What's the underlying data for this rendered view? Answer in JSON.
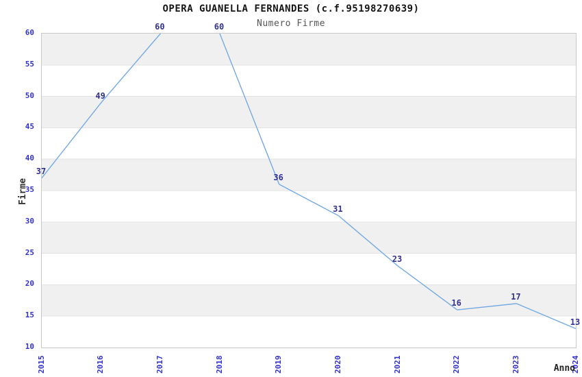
{
  "title": "OPERA GUANELLA FERNANDES (c.f.95198270639)",
  "subtitle": "Numero Firme",
  "chart_data": {
    "type": "line",
    "x": [
      "2015",
      "2016",
      "2017",
      "2018",
      "2019",
      "2020",
      "2021",
      "2022",
      "2023",
      "2024"
    ],
    "values": [
      37,
      49,
      60,
      60,
      36,
      31,
      23,
      16,
      17,
      13
    ],
    "title": "OPERA GUANELLA FERNANDES (c.f.95198270639)",
    "subtitle": "Numero Firme",
    "xlabel": "Anno",
    "ylabel": "Firme",
    "ylim": [
      10,
      60
    ],
    "ytick_step": 5,
    "yticks": [
      60,
      55,
      50,
      45,
      40,
      35,
      30,
      25,
      20,
      15,
      10
    ],
    "legend": "none",
    "grid": "horizontal-alternating-bands",
    "data_labels_visible": true,
    "colors": {
      "line": "#74aae4",
      "band": "#f0f0f0",
      "gridline": "#e3e3e3",
      "plot_border": "#c9c9c9",
      "tick_labels": "#3232cd",
      "data_labels": "#323290",
      "title": "#141414",
      "subtitle": "#555555",
      "axis_titles": "#333333",
      "background": "#ffffff"
    }
  }
}
